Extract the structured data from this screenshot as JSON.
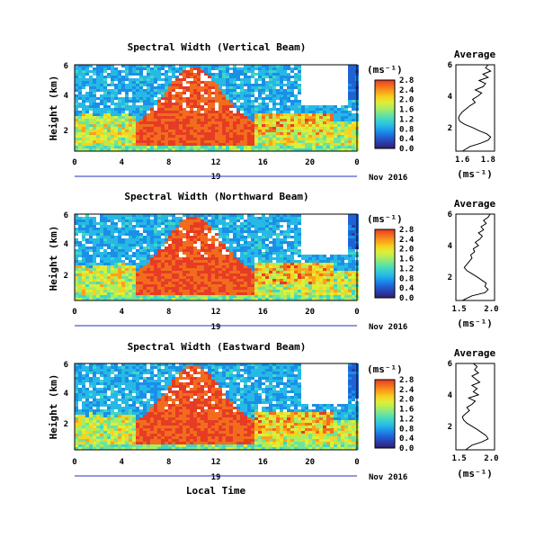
{
  "figure": {
    "xlabel": "Local Time",
    "date_label": "Nov 2016",
    "day_label": "19",
    "x_ticks": [
      "0",
      "4",
      "8",
      "12",
      "16",
      "20",
      "0"
    ],
    "colorbar_colors": [
      "#30206a",
      "#2c3aa8",
      "#1f62d6",
      "#1b8fe8",
      "#27b9e6",
      "#3fd6c6",
      "#6fe39a",
      "#a7ee62",
      "#dcef3a",
      "#f7d21f",
      "#f9a21a",
      "#f26c1e",
      "#e63b24"
    ]
  },
  "chart_data": [
    {
      "type": "heatmap",
      "title": "Spectral Width (Vertical Beam)",
      "ylabel": "Height (km)",
      "y_ticks": [
        "2",
        "4",
        "6"
      ],
      "x_range_hours": [
        0,
        24
      ],
      "height_range_km": [
        0.5,
        6
      ],
      "colorbar_label": "(ms⁻¹)",
      "colorbar_ticks": [
        "0.0",
        "0.4",
        "0.8",
        "1.2",
        "1.6",
        "2.0",
        "2.4",
        "2.8"
      ],
      "colorbar_range": [
        0.0,
        2.8
      ],
      "average_profile": {
        "title": "Average",
        "xlabel": "(ms⁻¹)",
        "x_ticks": [
          "1.6",
          "1.8"
        ],
        "x_range": [
          1.55,
          1.85
        ],
        "y_ticks": [
          "2",
          "4",
          "6"
        ],
        "height_km": [
          0.5,
          0.8,
          1.0,
          1.2,
          1.4,
          1.6,
          1.8,
          2.0,
          2.2,
          2.4,
          2.6,
          2.8,
          3.0,
          3.2,
          3.4,
          3.6,
          3.8,
          4.0,
          4.2,
          4.4,
          4.6,
          4.8,
          5.0,
          5.2,
          5.4,
          5.6,
          5.8,
          6.0
        ],
        "values": [
          1.6,
          1.66,
          1.74,
          1.8,
          1.82,
          1.79,
          1.73,
          1.68,
          1.62,
          1.58,
          1.57,
          1.58,
          1.6,
          1.63,
          1.66,
          1.7,
          1.68,
          1.72,
          1.75,
          1.7,
          1.76,
          1.78,
          1.73,
          1.8,
          1.76,
          1.82,
          1.78,
          1.8
        ]
      }
    },
    {
      "type": "heatmap",
      "title": "Spectral Width (Northward Beam)",
      "ylabel": "Height (km)",
      "y_ticks": [
        "2",
        "4",
        "6"
      ],
      "x_range_hours": [
        0,
        24
      ],
      "height_range_km": [
        0.5,
        6
      ],
      "colorbar_label": "(ms⁻¹)",
      "colorbar_ticks": [
        "0.0",
        "0.4",
        "0.8",
        "1.2",
        "1.6",
        "2.0",
        "2.4",
        "2.8"
      ],
      "colorbar_range": [
        0.0,
        2.8
      ],
      "average_profile": {
        "title": "Average",
        "xlabel": "(ms⁻¹)",
        "x_ticks": [
          "1.5",
          "2.0"
        ],
        "x_range": [
          1.45,
          2.05
        ],
        "y_ticks": [
          "2",
          "4",
          "6"
        ],
        "height_km": [
          0.5,
          0.8,
          1.0,
          1.2,
          1.4,
          1.6,
          1.8,
          2.0,
          2.2,
          2.4,
          2.6,
          2.8,
          3.0,
          3.2,
          3.4,
          3.6,
          3.8,
          4.0,
          4.2,
          4.4,
          4.6,
          4.8,
          5.0,
          5.2,
          5.4,
          5.6,
          5.8,
          6.0
        ],
        "values": [
          1.55,
          1.7,
          1.9,
          1.95,
          1.9,
          1.92,
          1.85,
          1.78,
          1.7,
          1.62,
          1.58,
          1.62,
          1.66,
          1.7,
          1.68,
          1.74,
          1.72,
          1.8,
          1.75,
          1.82,
          1.86,
          1.8,
          1.88,
          1.84,
          1.92,
          1.88,
          1.95,
          1.98
        ]
      }
    },
    {
      "type": "heatmap",
      "title": "Spectral Width (Eastward Beam)",
      "ylabel": "Height (km)",
      "y_ticks": [
        "2",
        "4",
        "6"
      ],
      "x_range_hours": [
        0,
        24
      ],
      "height_range_km": [
        0.5,
        6
      ],
      "colorbar_label": "(ms⁻¹)",
      "colorbar_ticks": [
        "0.0",
        "0.4",
        "0.8",
        "1.2",
        "1.6",
        "2.0",
        "2.4",
        "2.8"
      ],
      "colorbar_range": [
        0.0,
        2.8
      ],
      "average_profile": {
        "title": "Average",
        "xlabel": "(ms⁻¹)",
        "x_ticks": [
          "1.5",
          "2.0"
        ],
        "x_range": [
          1.45,
          2.05
        ],
        "y_ticks": [
          "2",
          "4",
          "6"
        ],
        "height_km": [
          0.5,
          0.8,
          1.0,
          1.2,
          1.4,
          1.6,
          1.8,
          2.0,
          2.2,
          2.4,
          2.6,
          2.8,
          3.0,
          3.2,
          3.4,
          3.6,
          3.8,
          4.0,
          4.2,
          4.4,
          4.6,
          4.8,
          5.0,
          5.2,
          5.4,
          5.6,
          5.8,
          6.0
        ],
        "values": [
          1.6,
          1.7,
          1.85,
          1.95,
          1.92,
          1.85,
          1.78,
          1.7,
          1.62,
          1.57,
          1.55,
          1.6,
          1.66,
          1.62,
          1.7,
          1.75,
          1.65,
          1.8,
          1.72,
          1.78,
          1.7,
          1.82,
          1.76,
          1.7,
          1.8,
          1.74,
          1.78,
          1.72
        ]
      }
    }
  ]
}
